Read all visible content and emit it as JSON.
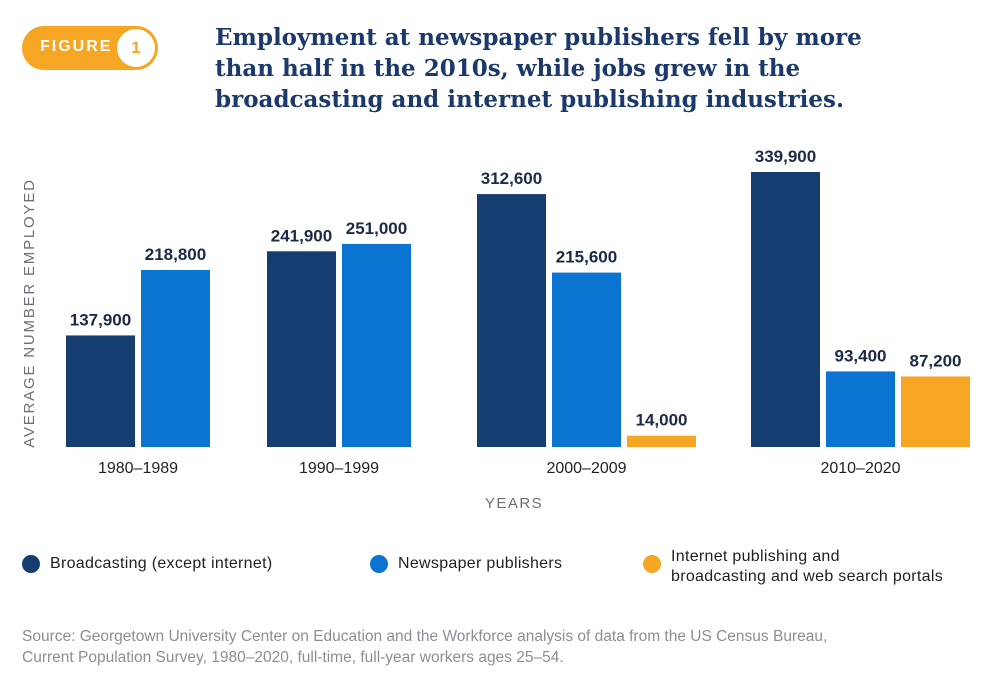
{
  "figure": {
    "label": "FIGURE",
    "number": "1"
  },
  "chart_data": {
    "type": "bar",
    "title": "Employment at newspaper publishers fell by more than half in the 2010s, while jobs grew in the broadcasting and internet publishing industries.",
    "xlabel": "YEARS",
    "ylabel": "AVERAGE NUMBER EMPLOYED",
    "categories": [
      "1980–1989",
      "1990–1999",
      "2000–2009",
      "2010–2020"
    ],
    "series": [
      {
        "name": "Broadcasting (except internet)",
        "color": "#163d70",
        "values": [
          137900,
          241900,
          312600,
          339900
        ],
        "labels": [
          "137,900",
          "241,900",
          "312,600",
          "339,900"
        ]
      },
      {
        "name": "Newspaper publishers",
        "color": "#0a74d0",
        "values": [
          218800,
          251000,
          215600,
          93400
        ],
        "labels": [
          "218,800",
          "251,000",
          "215,600",
          "93,400"
        ]
      },
      {
        "name": "Internet publishing and broadcasting and web search portals",
        "color": "#f6a623",
        "values": [
          null,
          null,
          14000,
          87200
        ],
        "labels": [
          null,
          null,
          "14,000",
          "87,200"
        ]
      }
    ],
    "ylim": [
      0,
      339900
    ],
    "grid": false,
    "legend_position": "bottom"
  },
  "legend": [
    {
      "label_lines": [
        "Broadcasting (except internet)"
      ],
      "color": "#163d70"
    },
    {
      "label_lines": [
        "Newspaper publishers"
      ],
      "color": "#0a74d0"
    },
    {
      "label_lines": [
        "Internet publishing and",
        "broadcasting and web search portals"
      ],
      "color": "#f6a623"
    }
  ],
  "source": {
    "line1": "Source: Georgetown University Center on Education and the Workforce analysis of data from the US Census Bureau,",
    "line2": "Current Population Survey, 1980–2020, full-time, full-year workers ages 25–54."
  }
}
